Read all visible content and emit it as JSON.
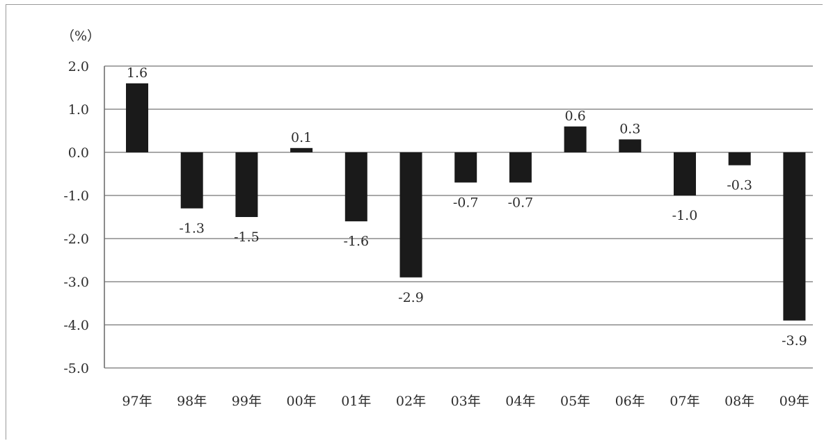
{
  "chart_data": {
    "type": "bar",
    "ylabel": "（%）",
    "xlabel": "",
    "title": "",
    "categories": [
      "97年",
      "98年",
      "99年",
      "00年",
      "01年",
      "02年",
      "03年",
      "04年",
      "05年",
      "06年",
      "07年",
      "08年",
      "09年"
    ],
    "values": [
      1.6,
      -1.3,
      -1.5,
      0.1,
      -1.6,
      -2.9,
      -0.7,
      -0.7,
      0.6,
      0.3,
      -1.0,
      -0.3,
      -3.9
    ],
    "value_labels": [
      "1.6",
      "-1.3",
      "-1.5",
      "0.1",
      "-1.6",
      "-2.9",
      "-0.7",
      "-0.7",
      "0.6",
      "0.3",
      "-1.0",
      "-0.3",
      "-3.9"
    ],
    "ylim": [
      -5.0,
      2.0
    ],
    "yticks": [
      2.0,
      1.0,
      0.0,
      -1.0,
      -2.0,
      -3.0,
      -4.0,
      -5.0
    ],
    "ytick_labels": [
      "2.0",
      "1.0",
      "0.0",
      "-1.0",
      "-2.0",
      "-3.0",
      "-4.0",
      "-5.0"
    ],
    "grid": true,
    "bar_color": "#1a1a1a",
    "grid_color": "#8c8c8c"
  }
}
